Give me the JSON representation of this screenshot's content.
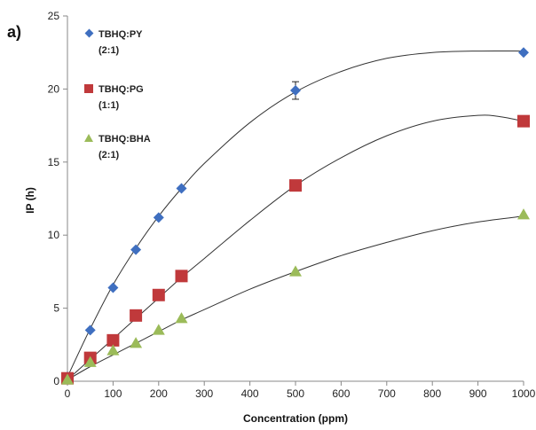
{
  "chart_data": {
    "type": "scatter",
    "panel_label": "a)",
    "xlabel": "Concentration (ppm)",
    "ylabel": "IP (h)",
    "xlim": [
      0,
      1000
    ],
    "ylim": [
      0,
      25
    ],
    "x_ticks": [
      0,
      100,
      200,
      300,
      400,
      500,
      600,
      700,
      800,
      900,
      1000
    ],
    "y_ticks": [
      0,
      5,
      10,
      15,
      20,
      25
    ],
    "grid": false,
    "legend_position": "top-left",
    "series": [
      {
        "name_line1": "TBHQ:PY",
        "name_line2": "(2:1)",
        "marker": "diamond",
        "color": "#3f6fc0",
        "x": [
          0,
          50,
          100,
          150,
          200,
          250,
          500,
          1000
        ],
        "y": [
          0.3,
          3.5,
          6.4,
          9.0,
          11.2,
          13.2,
          19.9,
          22.5
        ],
        "error_bar": {
          "x": 500,
          "y": 19.9,
          "err": 0.6
        },
        "trend": [
          [
            0,
            0.3
          ],
          [
            50,
            3.6
          ],
          [
            100,
            6.6
          ],
          [
            150,
            9.1
          ],
          [
            200,
            11.3
          ],
          [
            250,
            13.2
          ],
          [
            300,
            14.9
          ],
          [
            400,
            17.7
          ],
          [
            500,
            19.8
          ],
          [
            600,
            21.2
          ],
          [
            700,
            22.1
          ],
          [
            800,
            22.5
          ],
          [
            900,
            22.6
          ],
          [
            1000,
            22.6
          ]
        ]
      },
      {
        "name_line1": "TBHQ:PG",
        "name_line2": "(1:1)",
        "marker": "square",
        "color": "#c0393b",
        "x": [
          0,
          50,
          100,
          150,
          200,
          250,
          500,
          1000
        ],
        "y": [
          0.2,
          1.6,
          2.8,
          4.5,
          5.9,
          7.2,
          13.4,
          17.8
        ],
        "trend": [
          [
            0,
            0.1
          ],
          [
            50,
            1.5
          ],
          [
            100,
            2.9
          ],
          [
            150,
            4.3
          ],
          [
            200,
            5.7
          ],
          [
            250,
            7.1
          ],
          [
            300,
            8.4
          ],
          [
            400,
            11.0
          ],
          [
            500,
            13.4
          ],
          [
            600,
            15.3
          ],
          [
            700,
            16.8
          ],
          [
            800,
            17.8
          ],
          [
            900,
            18.2
          ],
          [
            950,
            18.1
          ],
          [
            1000,
            17.8
          ]
        ]
      },
      {
        "name_line1": "TBHQ:BHA",
        "name_line2": "(2:1)",
        "marker": "triangle",
        "color": "#9bbb59",
        "x": [
          0,
          50,
          100,
          150,
          200,
          250,
          500,
          1000
        ],
        "y": [
          0.1,
          1.3,
          2.1,
          2.6,
          3.5,
          4.3,
          7.5,
          11.4
        ],
        "trend": [
          [
            0,
            0.1
          ],
          [
            50,
            1.0
          ],
          [
            100,
            1.8
          ],
          [
            150,
            2.6
          ],
          [
            200,
            3.4
          ],
          [
            250,
            4.2
          ],
          [
            300,
            4.9
          ],
          [
            400,
            6.3
          ],
          [
            500,
            7.5
          ],
          [
            600,
            8.6
          ],
          [
            700,
            9.5
          ],
          [
            800,
            10.3
          ],
          [
            900,
            10.9
          ],
          [
            1000,
            11.3
          ]
        ]
      }
    ]
  }
}
